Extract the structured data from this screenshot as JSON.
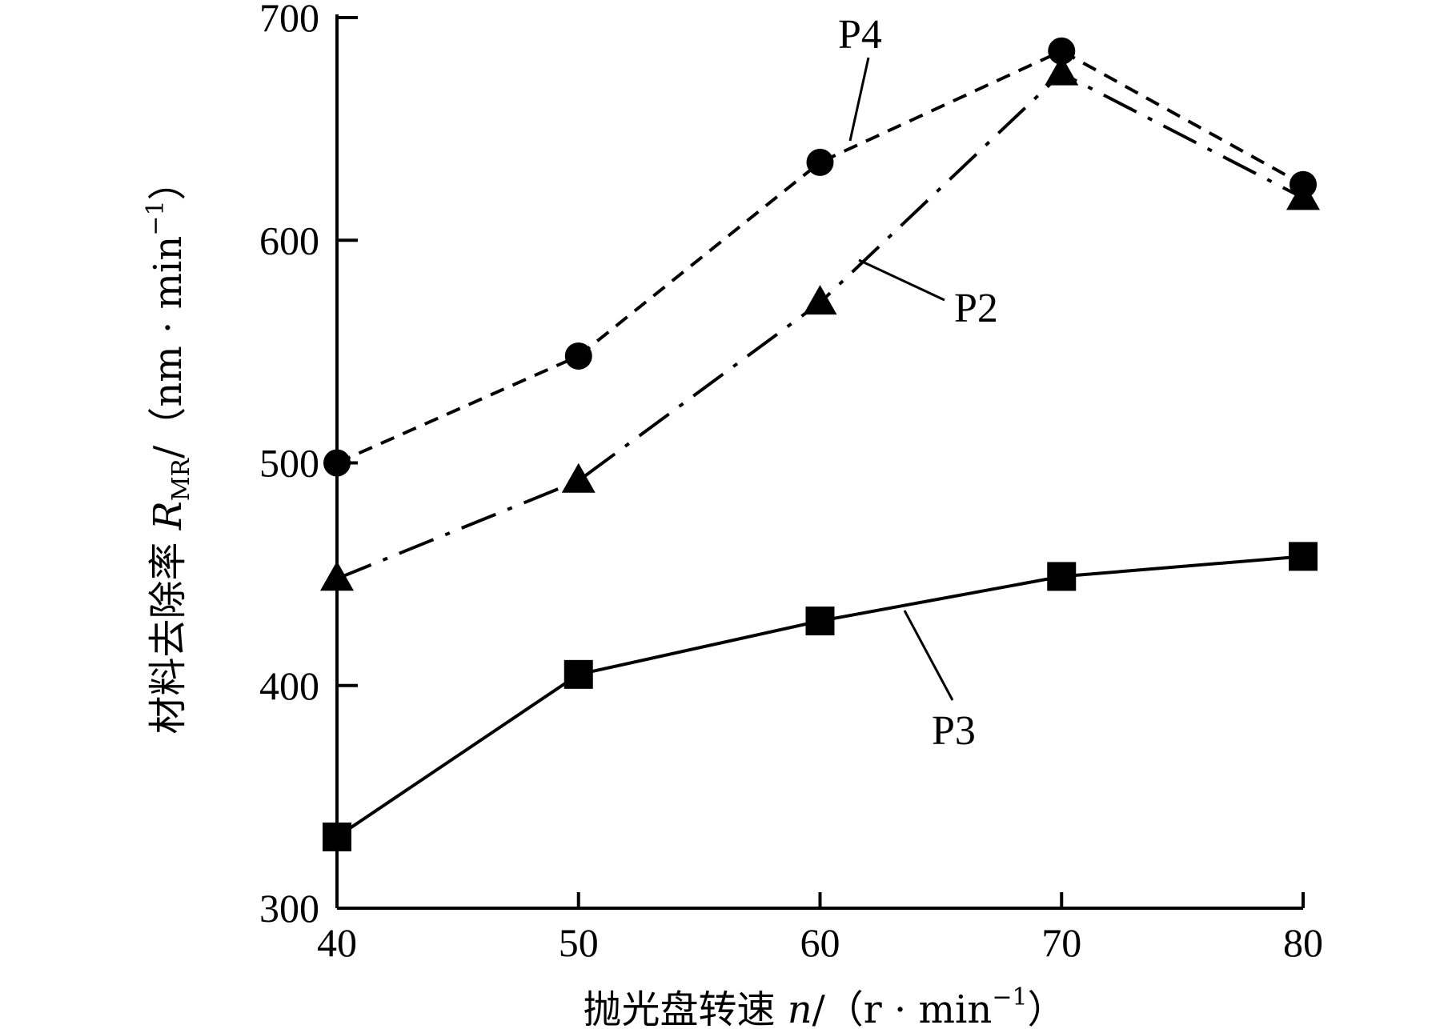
{
  "chart_data": {
    "type": "line",
    "x": [
      40,
      50,
      60,
      70,
      80
    ],
    "xlim": [
      40,
      80
    ],
    "ylim": [
      300,
      700
    ],
    "xticks": [
      40,
      50,
      60,
      70,
      80
    ],
    "yticks": [
      300,
      400,
      500,
      600,
      700
    ],
    "xlabel": {
      "prefix": "抛光盘转速 ",
      "var": "n",
      "unit_open": "/（r · min",
      "unit_sup": "−1",
      "unit_close": "）"
    },
    "ylabel": {
      "prefix": "材料去除率 ",
      "var": "R",
      "sub": "MR",
      "unit_open": "/（nm · min",
      "unit_sup": "−1",
      "unit_close": "）"
    },
    "grid": false,
    "legend": "inline-labels",
    "series": [
      {
        "name": "P4",
        "values": [
          500,
          548,
          635,
          685,
          625
        ],
        "marker": "circle",
        "dash": "dashed"
      },
      {
        "name": "P2",
        "values": [
          448,
          492,
          572,
          675,
          619
        ],
        "marker": "triangle",
        "dash": "dashdot"
      },
      {
        "name": "P3",
        "values": [
          332,
          405,
          429,
          449,
          458
        ],
        "marker": "square",
        "dash": "solid"
      }
    ]
  }
}
